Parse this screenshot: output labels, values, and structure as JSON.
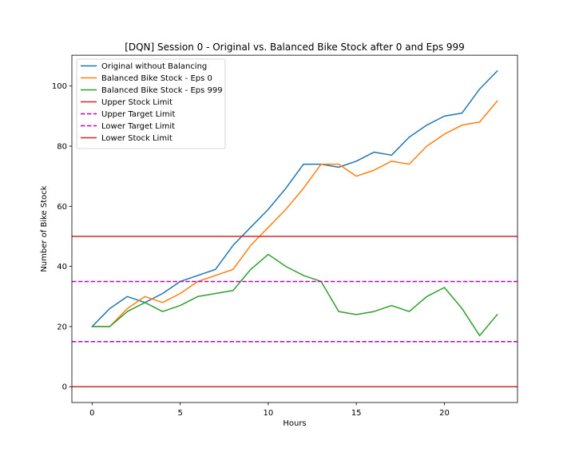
{
  "chart_data": {
    "type": "line",
    "title": "[DQN] Session 0 - Original vs. Balanced Bike Stock after 0 and Eps 999",
    "xlabel": "Hours",
    "ylabel": "Number of Bike Stock",
    "xlim": [
      -1.15,
      24.15
    ],
    "ylim": [
      -5.25,
      110.25
    ],
    "xticks": [
      0,
      5,
      10,
      15,
      20
    ],
    "yticks": [
      0,
      20,
      40,
      60,
      80,
      100
    ],
    "grid": false,
    "legend_position": "upper-left",
    "x": [
      0,
      1,
      2,
      3,
      4,
      5,
      6,
      7,
      8,
      9,
      10,
      11,
      12,
      13,
      14,
      15,
      16,
      17,
      18,
      19,
      20,
      21,
      22,
      23
    ],
    "series": [
      {
        "name": "Original without Balancing",
        "color": "#1f77b4",
        "style": "solid",
        "values": [
          20,
          26,
          30,
          28,
          31,
          35,
          37,
          39,
          47,
          53,
          59,
          66,
          74,
          74,
          73,
          75,
          78,
          77,
          83,
          87,
          90,
          91,
          99,
          105
        ]
      },
      {
        "name": "Balanced Bike Stock - Eps 0",
        "color": "#ff7f0e",
        "style": "solid",
        "values": [
          20,
          20,
          26,
          30,
          28,
          31,
          35,
          37,
          39,
          47,
          53,
          59,
          66,
          74,
          74,
          70,
          72,
          75,
          74,
          80,
          84,
          87,
          88,
          95
        ]
      },
      {
        "name": "Balanced Bike Stock - Eps 999",
        "color": "#2ca02c",
        "style": "solid",
        "values": [
          20,
          20,
          25,
          28,
          25,
          27,
          30,
          31,
          32,
          39,
          44,
          40,
          37,
          35,
          25,
          24,
          25,
          27,
          25,
          30,
          33,
          26,
          17,
          24
        ]
      }
    ],
    "hlines": [
      {
        "name": "Upper Stock Limit",
        "y": 50,
        "color": "#d62728",
        "style": "solid"
      },
      {
        "name": "Upper Target Limit",
        "y": 35,
        "color": "#bf00bf",
        "style": "dashed"
      },
      {
        "name": "Lower Target Limit",
        "y": 15,
        "color": "#bf00bf",
        "style": "dashed"
      },
      {
        "name": "Lower Stock Limit",
        "y": 0,
        "color": "#d62728",
        "style": "solid"
      }
    ]
  }
}
